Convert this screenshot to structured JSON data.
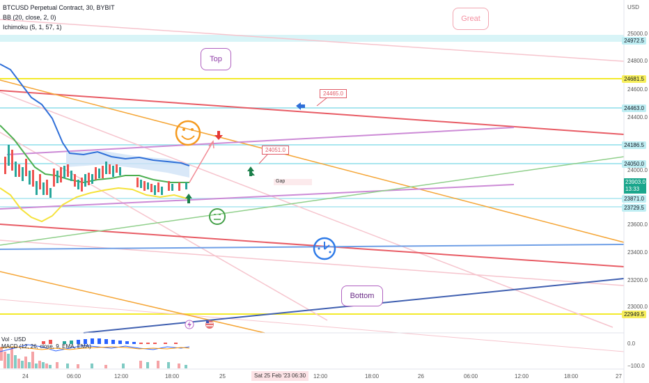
{
  "legend": {
    "symbol": "BTCUSD Perpetual Contract, 30, BYBIT",
    "bb": "BB (20, close, 2, 0)",
    "ichimoku": "Ichimoku (5, 1, 57, 1)"
  },
  "axis": {
    "currency": "USD",
    "price_ticks": [
      "25000.0",
      "24800.0",
      "24600.0",
      "24400.0",
      "24000.0",
      "23600.0",
      "23400.0",
      "23200.0",
      "23000.0"
    ],
    "time_ticks": [
      "24",
      "06:00",
      "12:00",
      "18:00",
      "25",
      "12:00",
      "18:00",
      "26",
      "06:00",
      "12:00",
      "18:00",
      "27"
    ],
    "time_badge": "Sat 25 Feb '23   06:30"
  },
  "price_labels": {
    "p24972": "24972.5",
    "p24681": "24681.5",
    "p24463": "24463.0",
    "p24186": "24186.5",
    "p24050": "24050.0",
    "p23871": "23871.0",
    "p23729": "23729.5",
    "p22949": "22949.5"
  },
  "current_price": {
    "value": "23903.0",
    "countdown": "13:33",
    "color": "#1aa68c"
  },
  "notes": {
    "n1": "24465.0",
    "n2": "24051.0",
    "gap": "Gap"
  },
  "bubbles": {
    "great": "Great",
    "top": "Top",
    "bottom": "Bottom"
  },
  "lower_pane": {
    "vol": "Vol · USD",
    "macd": "MACD (12, 26, close, 9, EMA, EMA)",
    "tick_top": "0.0",
    "tick_bottom": "−100.0"
  }
}
